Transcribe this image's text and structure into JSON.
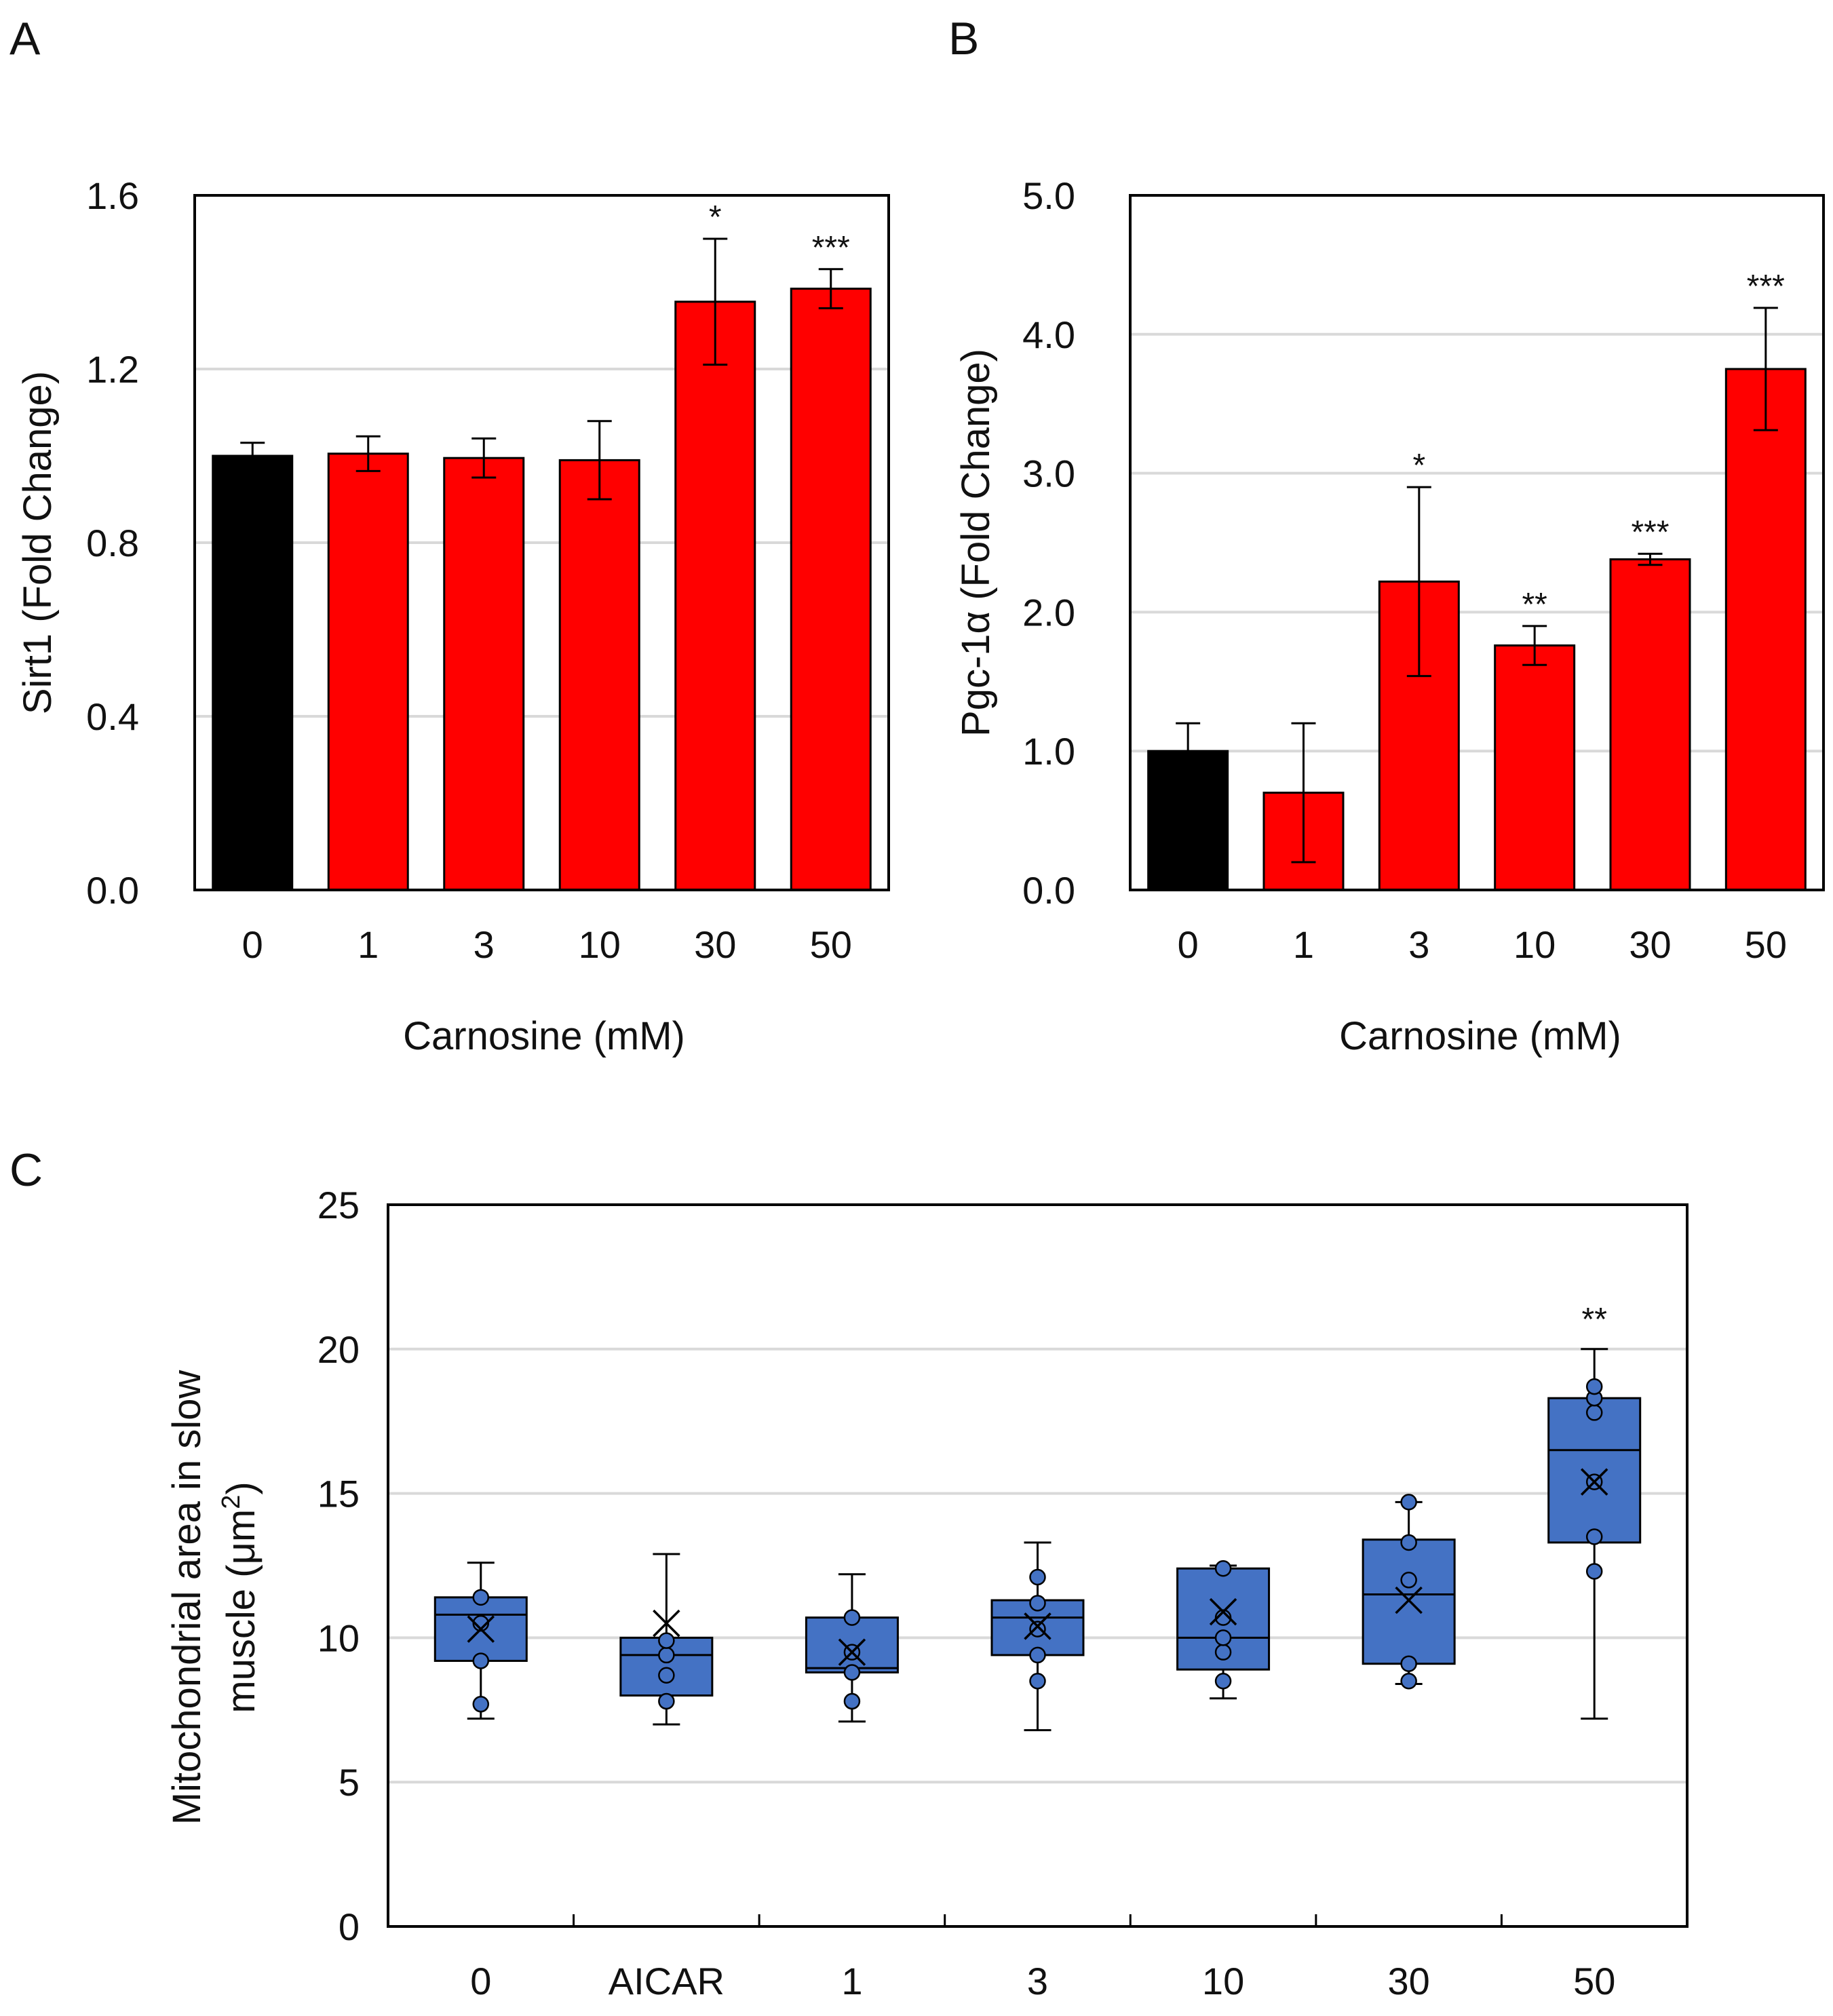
{
  "chart_data": [
    {
      "panel": "A",
      "type": "bar",
      "categories": [
        "0",
        "1",
        "3",
        "10",
        "30",
        "50"
      ],
      "values": [
        1.0,
        1.005,
        0.995,
        0.99,
        1.355,
        1.385
      ],
      "error": [
        0.03,
        0.04,
        0.045,
        0.09,
        0.145,
        0.045
      ],
      "significance": [
        "",
        "",
        "",
        "",
        "*",
        "***"
      ],
      "colors": [
        "#000000",
        "#ff0000",
        "#ff0000",
        "#ff0000",
        "#ff0000",
        "#ff0000"
      ],
      "xlabel": "Carnosine (mM)",
      "ylabel": "Sirt1 (Fold Change)",
      "ylim": [
        0,
        1.6
      ],
      "yticks": [
        "0.0",
        "0.4",
        "0.8",
        "1.2",
        "1.6"
      ],
      "grid": true
    },
    {
      "panel": "B",
      "type": "bar",
      "categories": [
        "0",
        "1",
        "3",
        "10",
        "30",
        "50"
      ],
      "values": [
        1.0,
        0.7,
        2.22,
        1.76,
        2.38,
        3.75
      ],
      "error": [
        0.2,
        0.5,
        0.68,
        0.14,
        0.04,
        0.44
      ],
      "significance": [
        "",
        "",
        "*",
        "**",
        "***",
        "***"
      ],
      "colors": [
        "#000000",
        "#ff0000",
        "#ff0000",
        "#ff0000",
        "#ff0000",
        "#ff0000"
      ],
      "xlabel": "Carnosine (mM)",
      "ylabel": "Pgc-1α (Fold Change)",
      "ylim": [
        0,
        5
      ],
      "yticks": [
        "0.0",
        "1.0",
        "2.0",
        "3.0",
        "4.0",
        "5.0"
      ],
      "grid": true
    },
    {
      "panel": "C",
      "type": "box",
      "categories": [
        "0",
        "AICAR",
        "1",
        "3",
        "10",
        "30",
        "50"
      ],
      "series": [
        {
          "name": "0",
          "min": 7.2,
          "q1": 9.2,
          "median": 10.8,
          "q3": 11.4,
          "max": 12.6,
          "mean": 10.3,
          "points": [
            7.7,
            9.2,
            10.5,
            11.4
          ]
        },
        {
          "name": "AICAR",
          "min": 7.0,
          "q1": 8.0,
          "median": 9.4,
          "q3": 10.0,
          "max": 12.9,
          "mean": 10.5,
          "points": [
            7.8,
            8.7,
            9.4,
            9.9
          ]
        },
        {
          "name": "1",
          "min": 7.1,
          "q1": 8.8,
          "median": 8.95,
          "q3": 10.7,
          "max": 12.2,
          "mean": 9.5,
          "points": [
            7.8,
            8.8,
            9.5,
            10.7
          ]
        },
        {
          "name": "3",
          "min": 6.8,
          "q1": 9.4,
          "median": 10.7,
          "q3": 11.3,
          "max": 13.3,
          "mean": 10.4,
          "points": [
            8.5,
            9.4,
            10.3,
            11.2,
            12.1
          ]
        },
        {
          "name": "10",
          "min": 7.9,
          "q1": 8.9,
          "median": 10.0,
          "q3": 12.4,
          "max": 12.5,
          "mean": 10.9,
          "points": [
            8.5,
            9.5,
            10.0,
            10.7,
            12.4
          ]
        },
        {
          "name": "30",
          "min": 8.4,
          "q1": 9.1,
          "median": 11.5,
          "q3": 13.4,
          "max": 14.7,
          "mean": 11.3,
          "points": [
            8.5,
            9.1,
            12.0,
            13.3,
            14.7
          ]
        },
        {
          "name": "50",
          "min": 7.2,
          "q1": 13.3,
          "median": 16.5,
          "q3": 18.3,
          "max": 20.0,
          "mean": 15.4,
          "points": [
            12.3,
            13.5,
            15.4,
            17.8,
            18.3,
            18.7
          ]
        }
      ],
      "significance": [
        "",
        "",
        "",
        "",
        "",
        "",
        "**"
      ],
      "box_color": "#4472c4",
      "ylabel_line1": "Mitochondrial area in slow",
      "ylabel_line2_base": "muscle (μm",
      "ylabel_line2_sup": "2",
      "ylabel_line2_end": ")",
      "ylim": [
        0,
        25
      ],
      "yticks": [
        "0",
        "5",
        "10",
        "15",
        "20",
        "25"
      ],
      "grid": true
    }
  ],
  "panel_labels": {
    "a": "A",
    "b": "B",
    "c": "C"
  }
}
